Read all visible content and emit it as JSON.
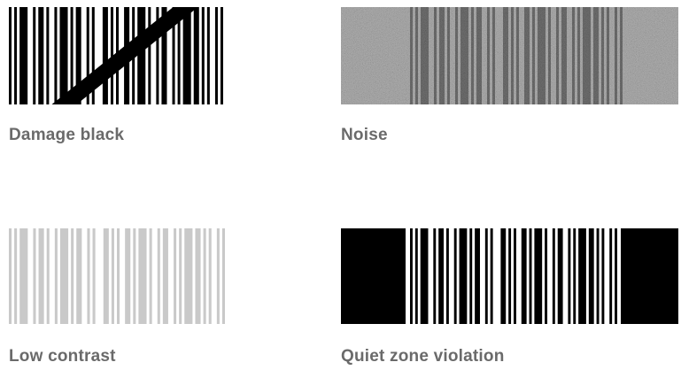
{
  "examples": [
    {
      "id": "damage",
      "caption": "Damage black",
      "bar_color": "#000000"
    },
    {
      "id": "noise",
      "caption": "Noise",
      "bar_color": "#3c3c3c",
      "background_color": "#a6a6a6"
    },
    {
      "id": "contrast",
      "caption": "Low contrast",
      "bar_color": "#c9c9c9"
    },
    {
      "id": "quiet",
      "caption": "Quiet zone violation",
      "bar_color": "#000000"
    }
  ]
}
